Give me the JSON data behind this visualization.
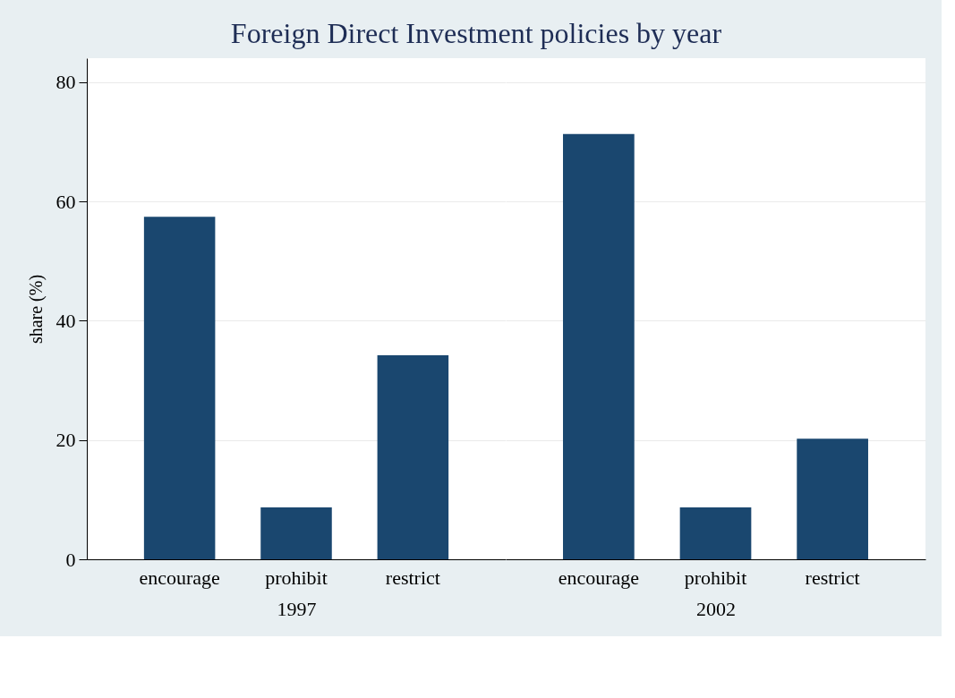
{
  "chart_data": [
    {
      "type": "bar",
      "title": "Foreign Direct Investment policies by year",
      "ylabel": "share (%)",
      "xlabel": "1997",
      "categories": [
        "encourage",
        "prohibit",
        "restrict"
      ],
      "values": [
        57.4,
        8.7,
        34.2
      ],
      "color": "#1a476f",
      "ylim": [
        0,
        84
      ],
      "yticks": [
        0,
        20,
        40,
        60,
        80
      ],
      "grid": "y"
    },
    {
      "type": "bar",
      "xlabel": "2002",
      "categories": [
        "encourage",
        "prohibit",
        "restrict"
      ],
      "values": [
        71.3,
        8.7,
        20.2
      ],
      "color": "#1a476f",
      "ylim": [
        0,
        84
      ],
      "yticks": [
        0,
        20,
        40,
        60,
        80
      ],
      "grid": "y",
      "tick_labels": "x"
    }
  ]
}
